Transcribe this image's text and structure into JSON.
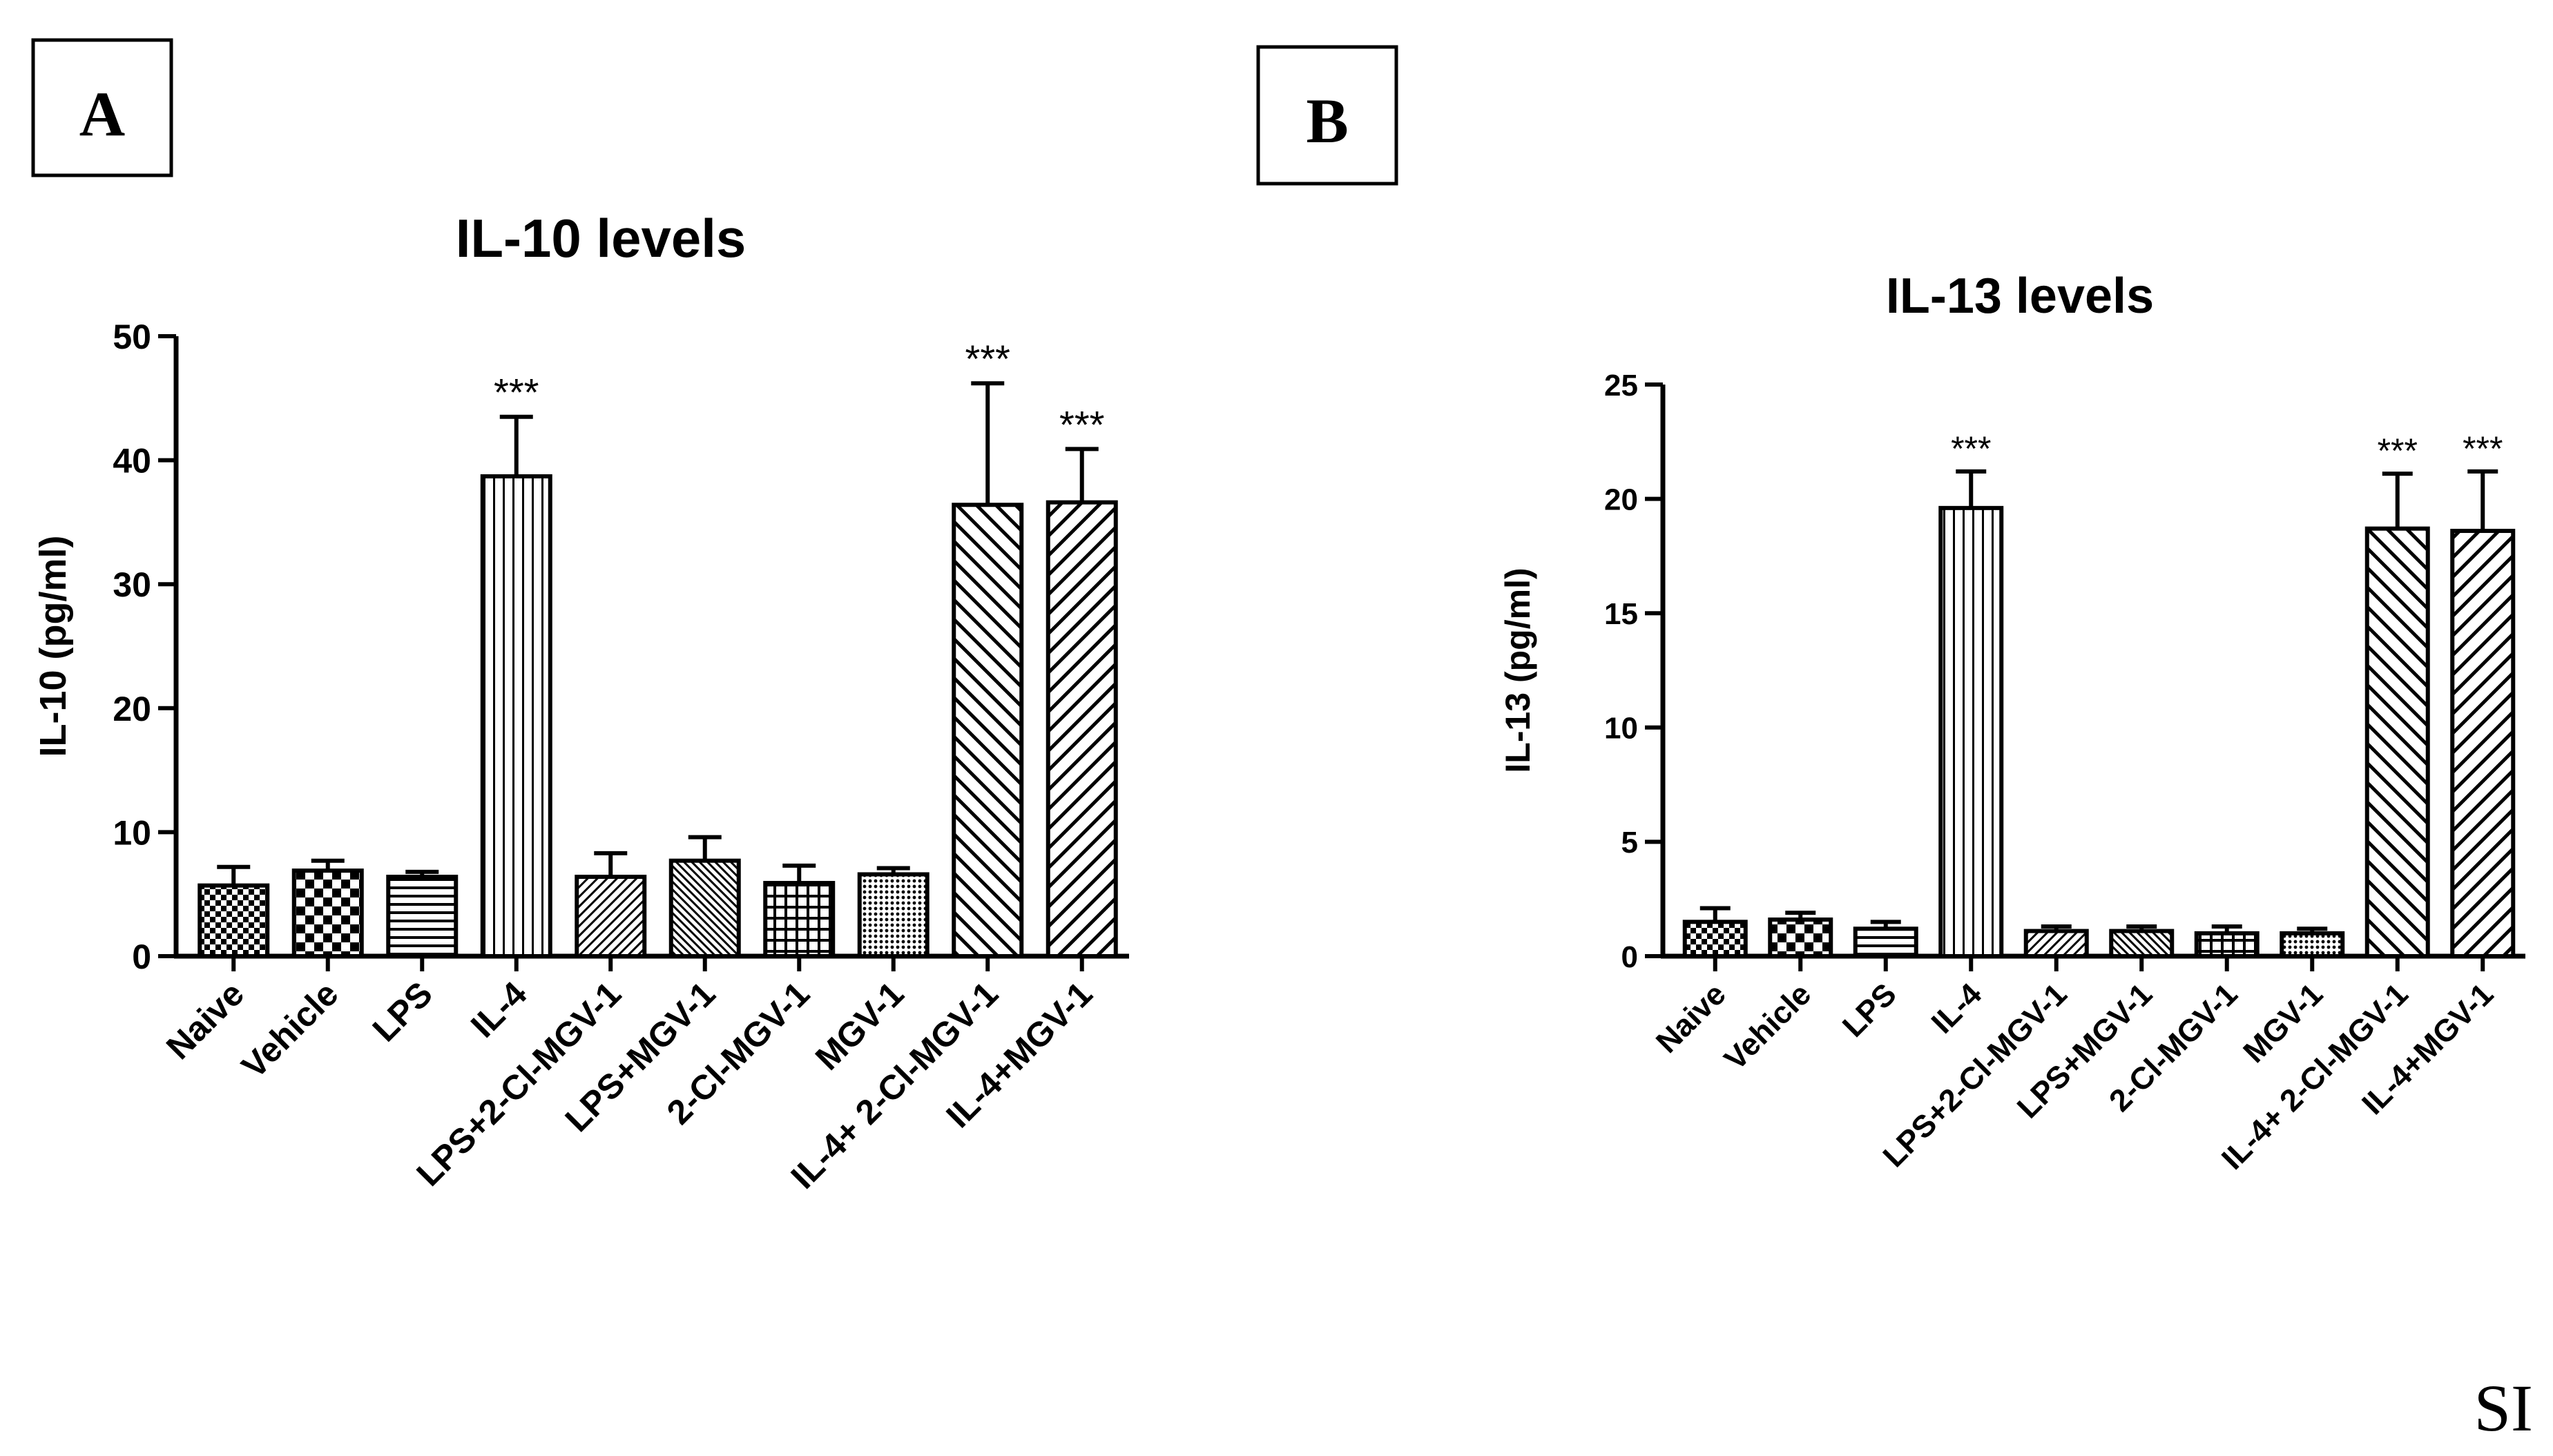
{
  "panels": [
    {
      "label": "A"
    },
    {
      "label": "B"
    }
  ],
  "page_mark": "SI",
  "colors": {
    "ink": "#000000",
    "background": "#ffffff"
  },
  "chart_data": [
    {
      "type": "bar",
      "title": "IL-10 levels",
      "xlabel": "",
      "ylabel": "IL-10 (pg/ml)",
      "ylim": [
        0,
        50
      ],
      "yticks": [
        0,
        10,
        20,
        30,
        40,
        50
      ],
      "categories": [
        "Naive",
        "Vehicle",
        "LPS",
        "IL-4",
        "LPS+2-Cl-MGV-1",
        "LPS+MGV-1",
        "2-Cl-MGV-1",
        "MGV-1",
        "IL-4+ 2-Cl-MGV-1",
        "IL-4+MGV-1"
      ],
      "values": [
        5.7,
        6.9,
        6.4,
        38.7,
        6.4,
        7.7,
        5.9,
        6.6,
        36.4,
        36.6
      ],
      "errors": [
        1.5,
        0.8,
        0.4,
        4.8,
        1.9,
        1.9,
        1.4,
        0.5,
        9.8,
        4.3
      ],
      "significance": [
        "",
        "",
        "",
        "***",
        "",
        "",
        "",
        "",
        "***",
        "***"
      ],
      "patterns": [
        "checker-small",
        "checker-large",
        "horizontal",
        "vertical",
        "diagonal-fine",
        "diagonal-dense",
        "grid",
        "dots",
        "diagonal-back",
        "diagonal-wide"
      ]
    },
    {
      "type": "bar",
      "title": "IL-13 levels",
      "xlabel": "",
      "ylabel": "IL-13 (pg/ml)",
      "ylim": [
        0,
        25
      ],
      "yticks": [
        0,
        5,
        10,
        15,
        20,
        25
      ],
      "categories": [
        "Naive",
        "Vehicle",
        "LPS",
        "IL-4",
        "LPS+2-Cl-MGV-1",
        "LPS+MGV-1",
        "2-Cl-MGV-1",
        "MGV-1",
        "IL-4+ 2-Cl-MGV-1",
        "IL-4+MGV-1"
      ],
      "values": [
        1.5,
        1.6,
        1.2,
        19.6,
        1.1,
        1.1,
        1.0,
        1.0,
        18.7,
        18.6
      ],
      "errors": [
        0.6,
        0.3,
        0.3,
        1.6,
        0.2,
        0.2,
        0.3,
        0.2,
        2.4,
        2.6
      ],
      "significance": [
        "",
        "",
        "",
        "***",
        "",
        "",
        "",
        "",
        "***",
        "***"
      ],
      "patterns": [
        "checker-small",
        "checker-large",
        "horizontal",
        "vertical",
        "diagonal-fine",
        "diagonal-dense",
        "grid",
        "dots",
        "diagonal-back",
        "diagonal-wide"
      ]
    }
  ]
}
